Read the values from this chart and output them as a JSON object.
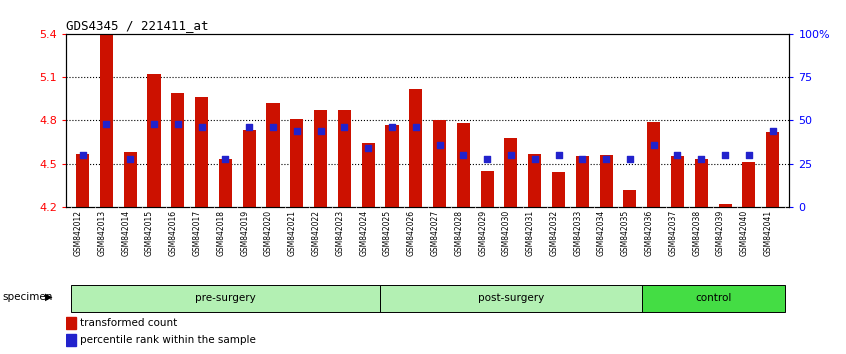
{
  "title": "GDS4345 / 221411_at",
  "samples": [
    "GSM842012",
    "GSM842013",
    "GSM842014",
    "GSM842015",
    "GSM842016",
    "GSM842017",
    "GSM842018",
    "GSM842019",
    "GSM842020",
    "GSM842021",
    "GSM842022",
    "GSM842023",
    "GSM842024",
    "GSM842025",
    "GSM842026",
    "GSM842027",
    "GSM842028",
    "GSM842029",
    "GSM842030",
    "GSM842031",
    "GSM842032",
    "GSM842033",
    "GSM842034",
    "GSM842035",
    "GSM842036",
    "GSM842037",
    "GSM842038",
    "GSM842039",
    "GSM842040",
    "GSM842041"
  ],
  "bar_values": [
    4.57,
    5.4,
    4.58,
    5.12,
    4.99,
    4.96,
    4.53,
    4.73,
    4.92,
    4.81,
    4.87,
    4.87,
    4.64,
    4.77,
    5.02,
    4.8,
    4.78,
    4.45,
    4.68,
    4.57,
    4.44,
    4.55,
    4.56,
    4.32,
    4.79,
    4.55,
    4.53,
    4.22,
    4.51,
    4.72
  ],
  "percentile_values": [
    30,
    48,
    28,
    48,
    48,
    46,
    28,
    46,
    46,
    44,
    44,
    46,
    34,
    46,
    46,
    36,
    30,
    28,
    30,
    28,
    30,
    28,
    28,
    28,
    36,
    30,
    28,
    30,
    30,
    44
  ],
  "groups": [
    {
      "label": "pre-surgery",
      "start": 0,
      "end": 13
    },
    {
      "label": "post-surgery",
      "start": 13,
      "end": 24
    },
    {
      "label": "control",
      "start": 24,
      "end": 30
    }
  ],
  "group_colors": [
    "#b3f0b3",
    "#b3f0b3",
    "#44dd44"
  ],
  "ymin": 4.2,
  "ymax": 5.4,
  "yticks": [
    4.2,
    4.5,
    4.8,
    5.1,
    5.4
  ],
  "ytick_labels": [
    "4.2",
    "4.5",
    "4.8",
    "5.1",
    "5.4"
  ],
  "gridlines": [
    4.5,
    4.8,
    5.1
  ],
  "bar_color": "#cc1100",
  "blue_color": "#2222cc",
  "specimen_label": "specimen",
  "legend_items": [
    {
      "label": "transformed count",
      "color": "#cc1100"
    },
    {
      "label": "percentile rank within the sample",
      "color": "#2222cc"
    }
  ],
  "xtick_bg": "#d0d0d0",
  "right_ytick_labels": [
    "0",
    "25",
    "50",
    "75",
    "100%"
  ]
}
